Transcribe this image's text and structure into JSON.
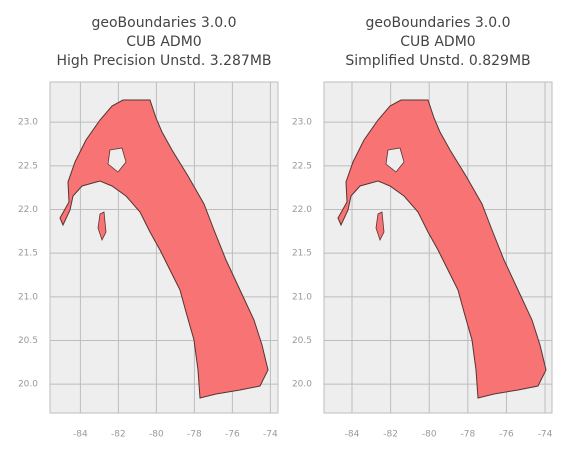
{
  "chart_data": [
    {
      "type": "map",
      "title_lines": [
        "geoBoundaries 3.0.0",
        "CUB ADM0",
        "High Precision Unstd. 3.287MB"
      ],
      "xlim": [
        -85.6,
        -73.6
      ],
      "ylim": [
        19.67,
        23.46
      ],
      "xticks": [
        -84,
        -82,
        -80,
        -78,
        -76,
        -74
      ],
      "yticks": [
        {
          "value": 20,
          "label": "20.0"
        },
        20.5,
        {
          "value": 21,
          "label": "21.0"
        },
        21.5,
        {
          "value": 22,
          "label": "22.0"
        },
        22.5,
        {
          "value": 23,
          "label": "23.0"
        }
      ],
      "grid": true,
      "color": "#f87474"
    },
    {
      "type": "map",
      "title_lines": [
        "geoBoundaries 3.0.0",
        "CUB ADM0",
        "Simplified Unstd. 0.829MB"
      ],
      "xlim": [
        -85.45,
        -73.64
      ],
      "ylim": [
        19.67,
        23.46
      ],
      "xticks": [
        -84,
        -82,
        -80,
        -78,
        -76,
        -74
      ],
      "yticks": [
        {
          "value": 20,
          "label": "20.0"
        },
        20.5,
        {
          "value": 21,
          "label": "21.0"
        },
        21.5,
        {
          "value": 22,
          "label": "22.0"
        },
        22.5,
        {
          "value": 23,
          "label": "23.0"
        }
      ],
      "grid": true,
      "color": "#f87474"
    }
  ]
}
